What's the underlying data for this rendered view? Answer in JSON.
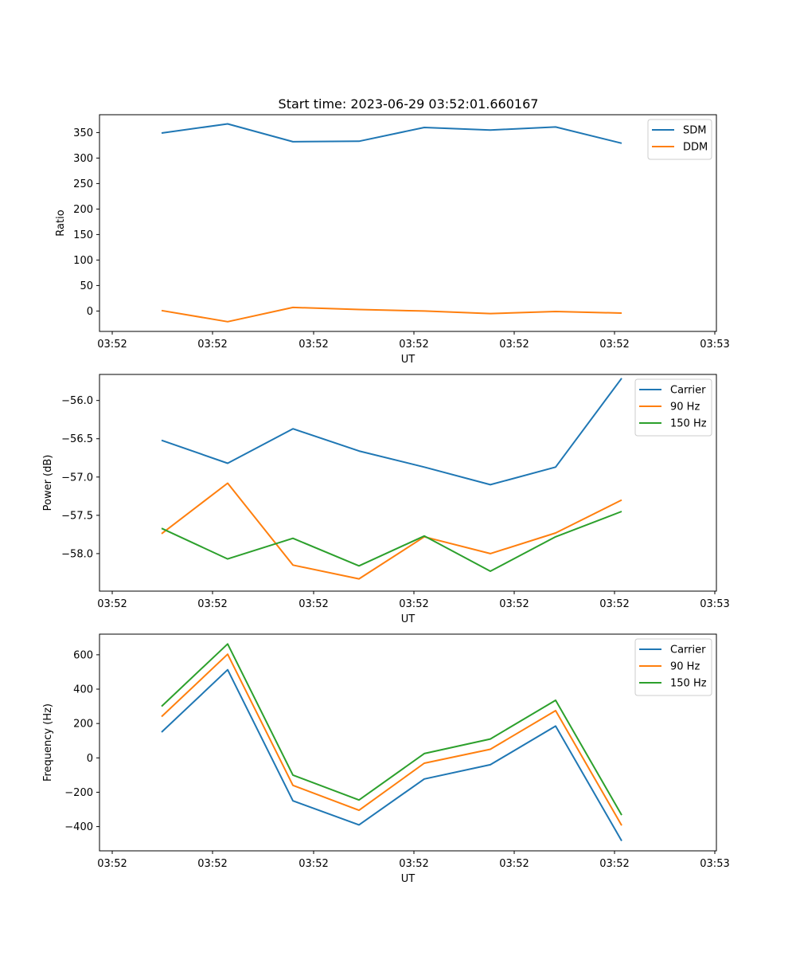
{
  "figure": {
    "title": "Start time: 2023-06-29 03:52:01.660167"
  },
  "chart_data": [
    {
      "type": "line",
      "xlabel": "UT",
      "ylabel": "Ratio",
      "x_tick_labels": [
        "03:52",
        "03:52",
        "03:52",
        "03:52",
        "03:52",
        "03:52",
        "03:53"
      ],
      "y_ticks": [
        0,
        50,
        100,
        150,
        200,
        250,
        300,
        350
      ],
      "ylim": [
        -40,
        385
      ],
      "legend_position": "top-right",
      "series": [
        {
          "name": "SDM",
          "color": "#1f77b4",
          "values": [
            349,
            367,
            332,
            333,
            360,
            355,
            361,
            329
          ]
        },
        {
          "name": "DDM",
          "color": "#ff7f0e",
          "values": [
            1,
            -21,
            7,
            3,
            0,
            -5,
            -1,
            -4
          ]
        }
      ]
    },
    {
      "type": "line",
      "xlabel": "UT",
      "ylabel": "Power (dB)",
      "x_tick_labels": [
        "03:52",
        "03:52",
        "03:52",
        "03:52",
        "03:52",
        "03:52",
        "03:53"
      ],
      "y_ticks": [
        -56.0,
        -56.5,
        -57.0,
        -57.5,
        -58.0
      ],
      "y_tick_labels": [
        "−56.0",
        "−56.5",
        "−57.0",
        "−57.5",
        "−58.0"
      ],
      "ylim": [
        -58.49,
        -55.66
      ],
      "legend_position": "top-right",
      "series": [
        {
          "name": "Carrier",
          "color": "#1f77b4",
          "values": [
            -56.52,
            -56.82,
            -56.37,
            -56.66,
            -56.87,
            -57.1,
            -56.87,
            -55.71
          ]
        },
        {
          "name": "90 Hz",
          "color": "#ff7f0e",
          "values": [
            -57.74,
            -57.08,
            -58.15,
            -58.33,
            -57.78,
            -58.0,
            -57.73,
            -57.3
          ]
        },
        {
          "name": "150 Hz",
          "color": "#2ca02c",
          "values": [
            -57.67,
            -58.07,
            -57.8,
            -58.16,
            -57.77,
            -58.23,
            -57.78,
            -57.45
          ]
        }
      ]
    },
    {
      "type": "line",
      "xlabel": "UT",
      "ylabel": "Frequency (Hz)",
      "x_tick_labels": [
        "03:52",
        "03:52",
        "03:52",
        "03:52",
        "03:52",
        "03:52",
        "03:53"
      ],
      "y_ticks": [
        600,
        400,
        200,
        0,
        -200,
        -400
      ],
      "y_tick_labels": [
        "600",
        "400",
        "200",
        "0",
        "−200",
        "−400"
      ],
      "ylim": [
        -541,
        720
      ],
      "legend_position": "top-right",
      "series": [
        {
          "name": "Carrier",
          "color": "#1f77b4",
          "values": [
            150,
            513,
            -250,
            -390,
            -123,
            -40,
            185,
            -483
          ]
        },
        {
          "name": "90 Hz",
          "color": "#ff7f0e",
          "values": [
            240,
            603,
            -160,
            -305,
            -31,
            50,
            275,
            -393
          ]
        },
        {
          "name": "150 Hz",
          "color": "#2ca02c",
          "values": [
            300,
            663,
            -100,
            -245,
            25,
            110,
            335,
            -333
          ]
        }
      ]
    }
  ]
}
